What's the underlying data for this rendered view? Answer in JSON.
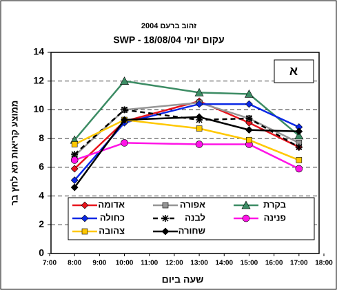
{
  "chart_data": {
    "type": "line",
    "title": "זהוב ברעם 2004",
    "subtitle": "SWP - עקום יומי  18/08/04",
    "annotation": "א",
    "x_label": "שעה ביום",
    "y_label": "ממוצע קריאות תא לחץ בר",
    "x": [
      8,
      10,
      13,
      15,
      17
    ],
    "xlim": [
      7,
      18
    ],
    "xticks": [
      {
        "value": 7,
        "label": "7:00"
      },
      {
        "value": 8,
        "label": "8:00"
      },
      {
        "value": 9,
        "label": "9:00"
      },
      {
        "value": 10,
        "label": "10:00"
      },
      {
        "value": 11,
        "label": "11:00"
      },
      {
        "value": 12,
        "label": "12:00"
      },
      {
        "value": 13,
        "label": "13:00"
      },
      {
        "value": 14,
        "label": "14:00"
      },
      {
        "value": 15,
        "label": "15:00"
      },
      {
        "value": 16,
        "label": "16:00"
      },
      {
        "value": 17,
        "label": "17:00"
      },
      {
        "value": 18,
        "label": "18:00"
      }
    ],
    "ylim": [
      0,
      14
    ],
    "yticks": [
      0,
      2,
      4,
      6,
      8,
      10,
      12,
      14
    ],
    "grid": true,
    "series": [
      {
        "name": "אדומה",
        "color": "#e8141c",
        "marker": "diamond",
        "values": [
          5.9,
          9.2,
          10.6,
          9.1,
          7.4
        ]
      },
      {
        "name": "אפורה",
        "color": "#969696",
        "marker": "square",
        "values": [
          6.8,
          10.0,
          10.5,
          9.4,
          7.7
        ]
      },
      {
        "name": "בקרת",
        "color": "#3c8c64",
        "marker": "triangle",
        "values": [
          7.9,
          12.0,
          11.2,
          11.1,
          8.2
        ]
      },
      {
        "name": "כחולה",
        "color": "#0a28e6",
        "marker": "diamond",
        "values": [
          5.1,
          9.1,
          10.4,
          10.4,
          8.8
        ]
      },
      {
        "name": "לבנה",
        "color": "#000000",
        "marker": "asterisk",
        "dash": true,
        "values": [
          6.9,
          10.0,
          9.3,
          9.4,
          7.4
        ]
      },
      {
        "name": "פנינה",
        "color": "#ff14e6",
        "marker": "circle",
        "values": [
          6.5,
          7.7,
          7.6,
          7.6,
          5.9
        ]
      },
      {
        "name": "צהובה",
        "color": "#ffc800",
        "marker": "square",
        "values": [
          7.6,
          9.3,
          8.7,
          7.9,
          6.5
        ]
      },
      {
        "name": "שחורה",
        "color": "#000000",
        "marker": "diamond",
        "values": [
          4.6,
          9.3,
          9.5,
          8.6,
          8.5
        ]
      }
    ]
  }
}
